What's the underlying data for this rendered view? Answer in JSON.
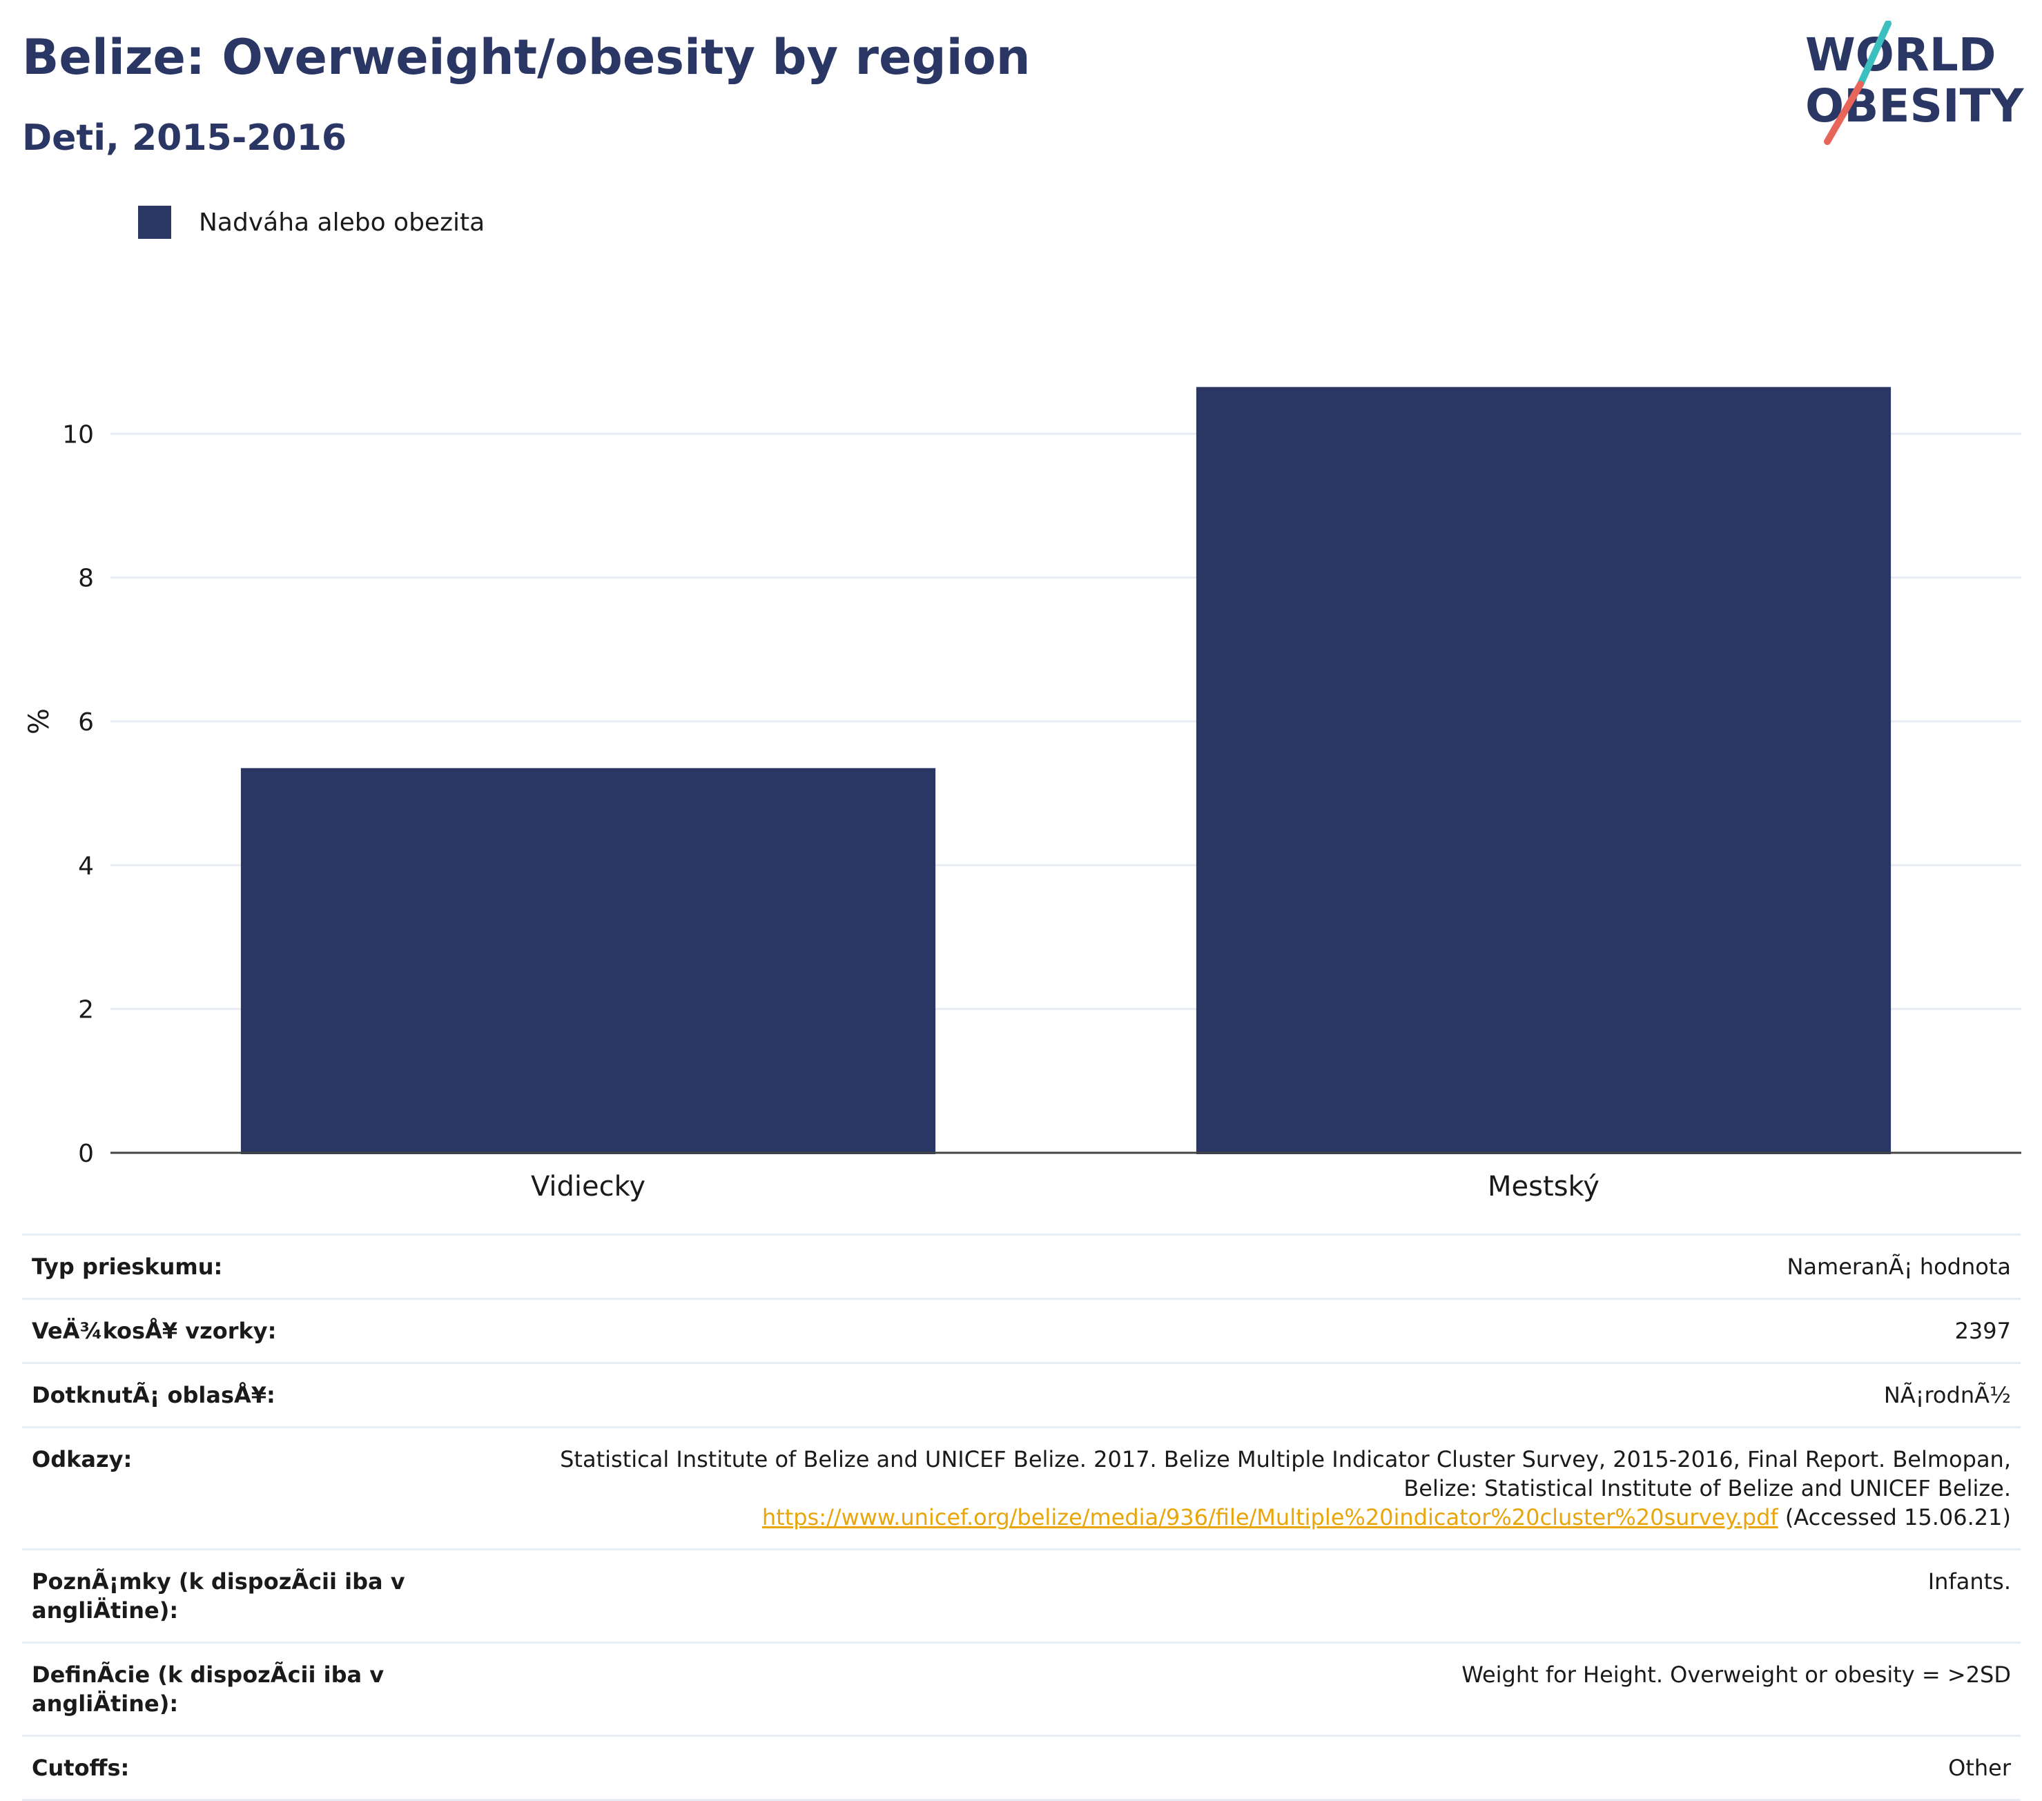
{
  "header": {
    "title": "Belize: Overweight/obesity by region",
    "subtitle": "Deti, 2015-2016"
  },
  "logo": {
    "line1": "WORLD",
    "line2": "OBESITY",
    "accent_teal": "#3bbfbf",
    "accent_red": "#e8655a",
    "text_color": "#2a3663"
  },
  "legend": {
    "label": "Nadváha alebo obezita",
    "color": "#2a3663"
  },
  "chart_data": {
    "type": "bar",
    "categories": [
      "Vidiecky",
      "Mestský"
    ],
    "series": [
      {
        "name": "Nadváha alebo obezita",
        "values": [
          5.35,
          10.65
        ],
        "color": "#2a3663"
      }
    ],
    "ylabel": "%",
    "xlabel": "",
    "ylim": [
      0,
      12
    ],
    "yticks": [
      0,
      2,
      4,
      6,
      8,
      10
    ],
    "grid": true,
    "legend_position": "top-left"
  },
  "meta": {
    "survey_type_label": "Typ prieskumu:",
    "survey_type_value": "NameranÃ¡ hodnota",
    "sample_size_label": "VeÄ¾kosÅ¥ vzorky:",
    "sample_size_value": "2397",
    "area_label": "DotknutÃ¡ oblasÅ¥:",
    "area_value": "NÃ¡rodnÃ½",
    "refs_label": "Odkazy:",
    "refs_text": "Statistical Institute of Belize and UNICEF Belize. 2017. Belize Multiple Indicator Cluster Survey, 2015-2016, Final Report. Belmopan, Belize: Statistical Institute of Belize and UNICEF Belize.",
    "refs_link": "https://www.unicef.org/belize/media/936/file/Multiple%20indicator%20cluster%20survey.pdf",
    "refs_accessed": "(Accessed 15.06.21)",
    "notes_label": "PoznÃ¡mky (k dispozÃcii iba v angliÄtine):",
    "notes_value": "Infants.",
    "definitions_label": "DefinÃcie (k dispozÃcii iba v angliÄtine):",
    "definitions_value": "Weight for Height. Overweight or obesity = >2SD",
    "cutoffs_label": "Cutoffs:",
    "cutoffs_value": "Other"
  }
}
